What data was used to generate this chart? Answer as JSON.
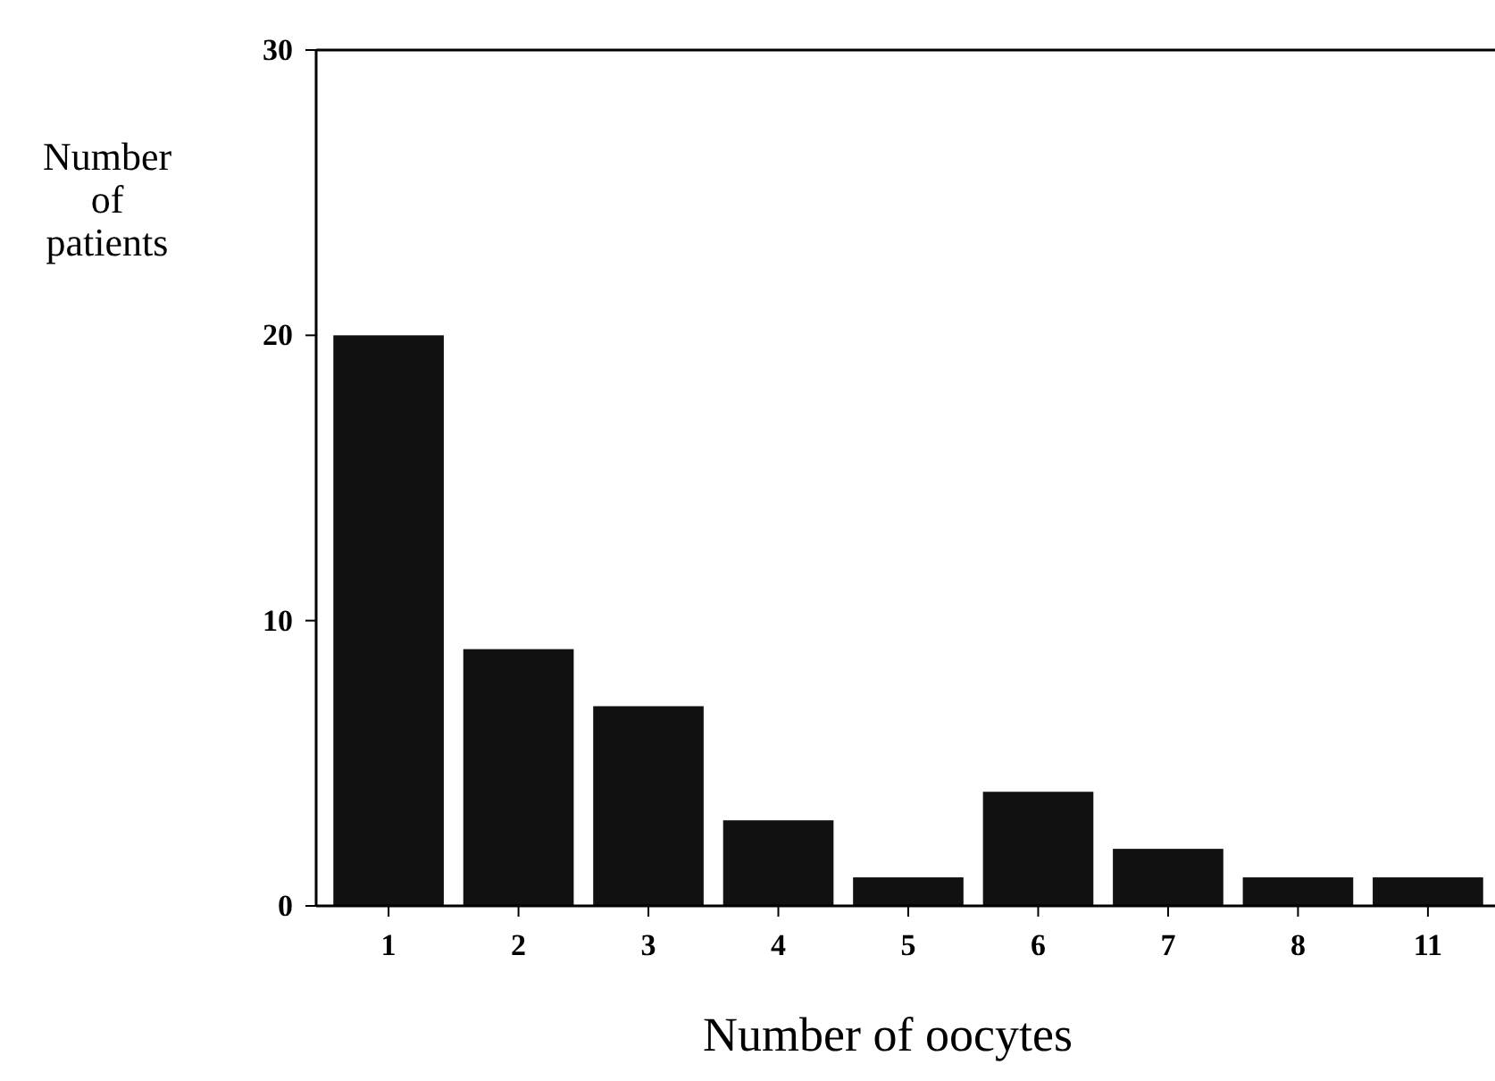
{
  "chart_data": {
    "type": "bar",
    "xlabel": "Number of oocytes",
    "ylabel": "Number of patients",
    "categories": [
      "1",
      "2",
      "3",
      "4",
      "5",
      "6",
      "7",
      "8",
      "11"
    ],
    "values": [
      20,
      9,
      7,
      3,
      1,
      4,
      2,
      1,
      1
    ],
    "color": "#111111",
    "ylim": [
      0,
      30
    ],
    "yticks": [
      0,
      10,
      20,
      30
    ],
    "grid": false
  }
}
